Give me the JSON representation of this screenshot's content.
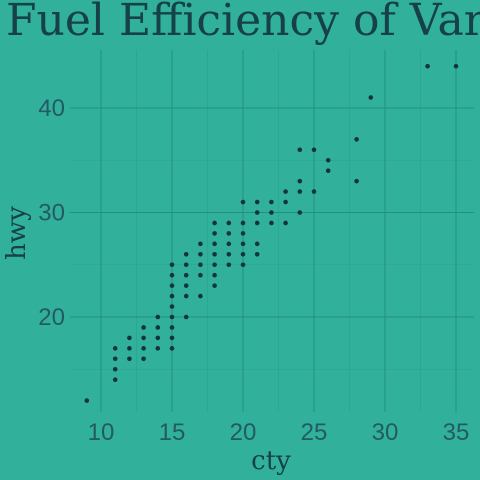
{
  "chart_data": {
    "type": "scatter",
    "title": "Fuel Efficiency of Various",
    "xlabel": "cty",
    "ylabel": "hwy",
    "xlim": [
      8,
      36.5
    ],
    "ylim": [
      10,
      45
    ],
    "x_ticks": [
      10,
      15,
      20,
      25,
      30,
      35
    ],
    "y_ticks": [
      20,
      30,
      40
    ],
    "grid": true,
    "colors": {
      "background": "#31b19c",
      "point": "#13343c",
      "text": "#16414a"
    },
    "points": [
      [
        9,
        12
      ],
      [
        11,
        14
      ],
      [
        11,
        15
      ],
      [
        11,
        16
      ],
      [
        11,
        17
      ],
      [
        12,
        16
      ],
      [
        12,
        17
      ],
      [
        12,
        18
      ],
      [
        13,
        16
      ],
      [
        13,
        17
      ],
      [
        13,
        18
      ],
      [
        13,
        19
      ],
      [
        14,
        17
      ],
      [
        14,
        18
      ],
      [
        14,
        19
      ],
      [
        14,
        20
      ],
      [
        15,
        17
      ],
      [
        15,
        18
      ],
      [
        15,
        19
      ],
      [
        15,
        20
      ],
      [
        15,
        21
      ],
      [
        15,
        22
      ],
      [
        15,
        23
      ],
      [
        15,
        24
      ],
      [
        15,
        25
      ],
      [
        16,
        20
      ],
      [
        16,
        22
      ],
      [
        16,
        23
      ],
      [
        16,
        24
      ],
      [
        16,
        25
      ],
      [
        16,
        26
      ],
      [
        17,
        22
      ],
      [
        17,
        24
      ],
      [
        17,
        25
      ],
      [
        17,
        26
      ],
      [
        17,
        27
      ],
      [
        18,
        23
      ],
      [
        18,
        24
      ],
      [
        18,
        25
      ],
      [
        18,
        26
      ],
      [
        18,
        27
      ],
      [
        18,
        28
      ],
      [
        18,
        29
      ],
      [
        19,
        25
      ],
      [
        19,
        26
      ],
      [
        19,
        27
      ],
      [
        19,
        28
      ],
      [
        19,
        29
      ],
      [
        20,
        25
      ],
      [
        20,
        26
      ],
      [
        20,
        27
      ],
      [
        20,
        28
      ],
      [
        20,
        29
      ],
      [
        20,
        31
      ],
      [
        21,
        26
      ],
      [
        21,
        27
      ],
      [
        21,
        29
      ],
      [
        21,
        30
      ],
      [
        21,
        31
      ],
      [
        22,
        29
      ],
      [
        22,
        30
      ],
      [
        22,
        31
      ],
      [
        23,
        29
      ],
      [
        23,
        31
      ],
      [
        23,
        32
      ],
      [
        24,
        30
      ],
      [
        24,
        32
      ],
      [
        24,
        33
      ],
      [
        24,
        36
      ],
      [
        25,
        32
      ],
      [
        25,
        36
      ],
      [
        26,
        34
      ],
      [
        26,
        35
      ],
      [
        28,
        33
      ],
      [
        28,
        37
      ],
      [
        29,
        41
      ],
      [
        33,
        44
      ],
      [
        35,
        44
      ]
    ]
  }
}
